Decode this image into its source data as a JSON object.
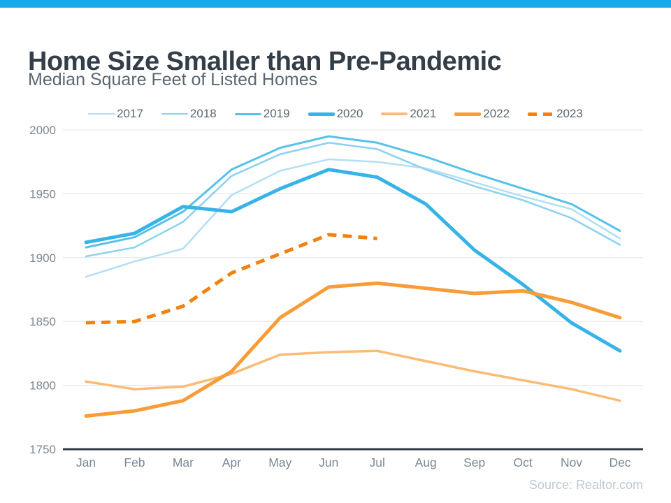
{
  "page": {
    "accent_bar_color": "#18a9ec"
  },
  "header": {
    "title": "Home Size Smaller than Pre-Pandemic",
    "subtitle": "Median Square Feet of Listed Homes"
  },
  "source": {
    "label": "Source: Realtor.com"
  },
  "chart_data": {
    "type": "line",
    "title": "Home Size Smaller than Pre-Pandemic",
    "subtitle": "Median Square Feet of Listed Homes",
    "categories": [
      "Jan",
      "Feb",
      "Mar",
      "Apr",
      "May",
      "Jun",
      "Jul",
      "Aug",
      "Sep",
      "Oct",
      "Nov",
      "Dec"
    ],
    "xlabel": "",
    "ylabel": "",
    "ylim": [
      1750,
      2000
    ],
    "yticks": [
      2000,
      1950,
      1900,
      1850,
      1800,
      1750
    ],
    "grid": true,
    "legend_position": "top",
    "series": [
      {
        "name": "2017",
        "color": "#b3dff2",
        "width": 2.5,
        "dash": false,
        "values": [
          1885,
          1897,
          1907,
          1949,
          1968,
          1977,
          1975,
          1970,
          1959,
          1948,
          1938,
          1915
        ]
      },
      {
        "name": "2018",
        "color": "#8ad2ef",
        "width": 2.5,
        "dash": false,
        "values": [
          1901,
          1908,
          1928,
          1964,
          1981,
          1990,
          1985,
          1969,
          1956,
          1945,
          1931,
          1910
        ]
      },
      {
        "name": "2019",
        "color": "#58c1e9",
        "width": 3,
        "dash": false,
        "values": [
          1908,
          1916,
          1936,
          1969,
          1986,
          1995,
          1990,
          1979,
          1966,
          1954,
          1942,
          1921
        ]
      },
      {
        "name": "2020",
        "color": "#38b3e7",
        "width": 5,
        "dash": false,
        "values": [
          1912,
          1919,
          1940,
          1936,
          1954,
          1969,
          1963,
          1942,
          1906,
          1879,
          1849,
          1827
        ]
      },
      {
        "name": "2021",
        "color": "#f9bc77",
        "width": 3.5,
        "dash": false,
        "values": [
          1803,
          1797,
          1799,
          1809,
          1824,
          1826,
          1827,
          1819,
          1811,
          1804,
          1797,
          1788
        ]
      },
      {
        "name": "2022",
        "color": "#f89c38",
        "width": 5,
        "dash": false,
        "values": [
          1776,
          1780,
          1788,
          1811,
          1853,
          1877,
          1880,
          1876,
          1872,
          1874,
          1865,
          1853
        ]
      },
      {
        "name": "2023",
        "color": "#f1820f",
        "width": 5,
        "dash": true,
        "values": [
          1849,
          1850,
          1862,
          1888,
          1903,
          1918,
          1915
        ]
      }
    ],
    "axis_style": {
      "tick_label_color": "#7b8794",
      "grid_color": "#e2e4e6",
      "baseline_color": "#2e3b45"
    }
  }
}
